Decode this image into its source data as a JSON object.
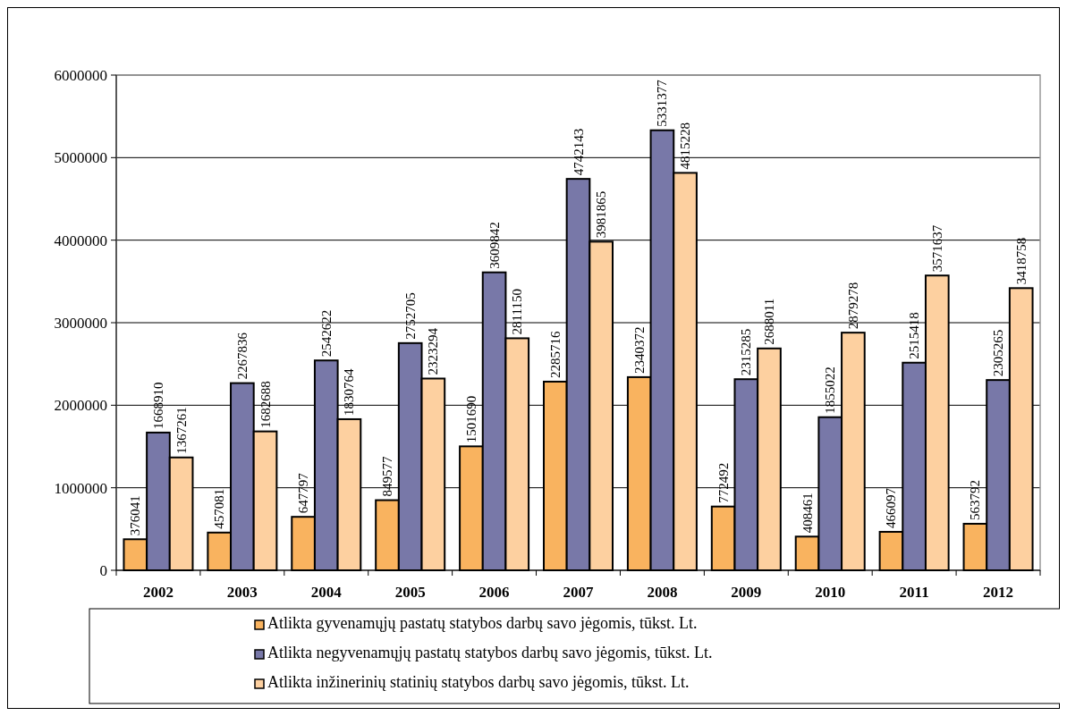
{
  "chart_data": {
    "type": "bar",
    "categories": [
      "2002",
      "2003",
      "2004",
      "2005",
      "2006",
      "2007",
      "2008",
      "2009",
      "2010",
      "2011",
      "2012"
    ],
    "series": [
      {
        "name": "Atlikta gyvenamųjų pastatų statybos darbų savo jėgomis, tūkst. Lt.",
        "color": "#f9b35f",
        "values": [
          376041,
          457081,
          647797,
          849577,
          1501690,
          2285716,
          2340372,
          772492,
          408461,
          466097,
          563792
        ]
      },
      {
        "name": "Atlikta negyvenamųjų pastatų statybos darbų savo jėgomis, tūkst. Lt.",
        "color": "#7878a8",
        "values": [
          1668910,
          2267836,
          2542622,
          2752705,
          3609842,
          4742143,
          5331377,
          2315285,
          1855022,
          2515418,
          2305265
        ]
      },
      {
        "name": "Atlikta inžinerinių statinių statybos darbų savo jėgomis, tūkst. Lt.",
        "color": "#fdd0a0",
        "values": [
          1367261,
          1682688,
          1830764,
          2323294,
          2811150,
          3981865,
          4815228,
          2688011,
          2879278,
          3571637,
          3418758
        ]
      }
    ],
    "ylim": [
      0,
      6000000
    ],
    "yticks": [
      0,
      1000000,
      2000000,
      3000000,
      4000000,
      5000000,
      6000000
    ],
    "grid": "y",
    "data_labels": true,
    "legend": "bottom"
  }
}
